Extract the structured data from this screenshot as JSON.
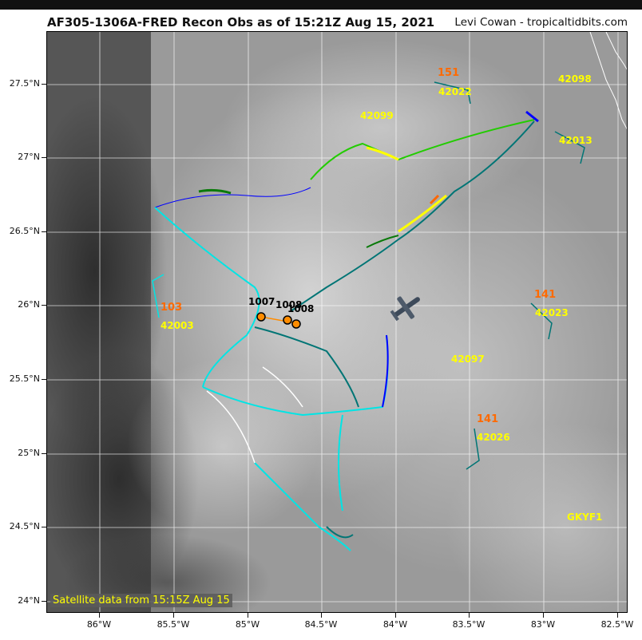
{
  "header": {
    "title": "AF305-1306A-FRED Recon Obs as of 15:21Z Aug 15, 2021",
    "credit": "Levi Cowan - tropicaltidbits.com"
  },
  "map": {
    "satellite_note": "Satellite data from 15:15Z Aug 15",
    "lat_ticks": [
      "27.5°N",
      "27°N",
      "26.5°N",
      "26°N",
      "25.5°N",
      "25°N",
      "24.5°N",
      "24°N"
    ],
    "lon_ticks": [
      "86°W",
      "85.5°W",
      "85°W",
      "84.5°W",
      "84°W",
      "83.5°W",
      "83°W",
      "82.5°W"
    ],
    "buoys": [
      "42098",
      "42022",
      "42099",
      "42013",
      "42003",
      "42023",
      "42097",
      "42026",
      "GKYF1"
    ],
    "buoy_pressures": [
      "151",
      "103",
      "141",
      "141"
    ],
    "dropsondes": [
      "1007",
      "1008",
      "1008"
    ],
    "colors": {
      "satellite_bg": "#8d8d8d",
      "buoy_label": "#ffff00",
      "pressure_label": "#ff6a00",
      "barb_cyan": "#00e5e5",
      "barb_teal": "#007575",
      "barb_green": "#22cc00",
      "barb_blue": "#0000ff",
      "barb_yellow": "#ffff00",
      "barb_orange": "#ff6600",
      "barb_white": "#ffffff",
      "sonde_marker": "#ff8c00"
    }
  }
}
